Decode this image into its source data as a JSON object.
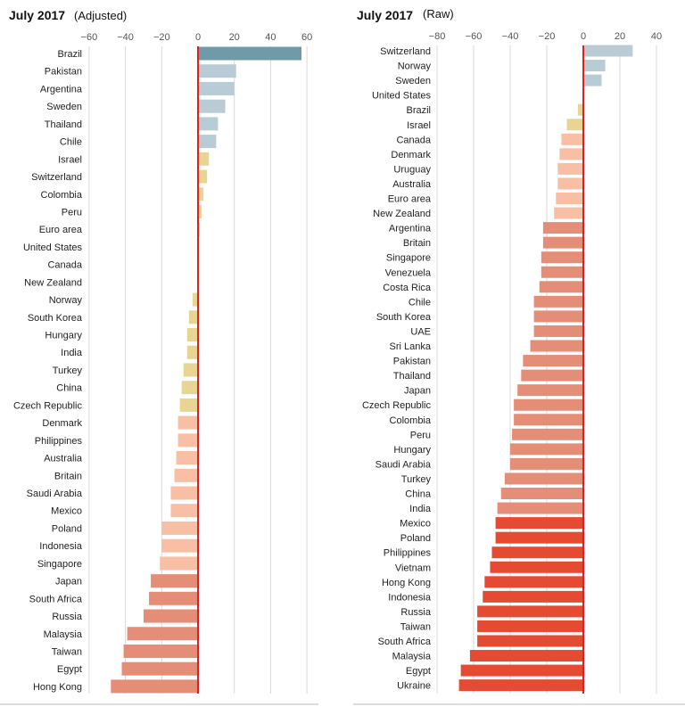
{
  "chart_data": [
    {
      "type": "bar",
      "orientation": "horizontal",
      "title": "July 2017",
      "subtitle": "(Adjusted)",
      "xlim": [
        -60,
        60
      ],
      "xticks": [
        -60,
        -40,
        -20,
        0,
        20,
        40,
        60
      ],
      "xtick_labels": [
        "−60",
        "−40",
        "−20",
        "0",
        "20",
        "40",
        "60"
      ],
      "grid": true,
      "categories": [
        "Brazil",
        "Pakistan",
        "Argentina",
        "Sweden",
        "Thailand",
        "Chile",
        "Israel",
        "Switzerland",
        "Colombia",
        "Peru",
        "Euro area",
        "United States",
        "Canada",
        "New Zealand",
        "Norway",
        "South Korea",
        "Hungary",
        "India",
        "Turkey",
        "China",
        "Czech Republic",
        "Denmark",
        "Philippines",
        "Australia",
        "Britain",
        "Saudi Arabia",
        "Mexico",
        "Poland",
        "Indonesia",
        "Singapore",
        "Japan",
        "South Africa",
        "Russia",
        "Malaysia",
        "Taiwan",
        "Egypt",
        "Hong Kong"
      ],
      "values": [
        57,
        21,
        20,
        15,
        11,
        10,
        6,
        5,
        3,
        2,
        1,
        0,
        -0.5,
        -0.5,
        -3,
        -5,
        -6,
        -6,
        -8,
        -9,
        -10,
        -11,
        -11,
        -12,
        -13,
        -15,
        -15,
        -20,
        -20,
        -21,
        -26,
        -27,
        -30,
        -39,
        -41,
        -42,
        -48
      ]
    },
    {
      "type": "bar",
      "orientation": "horizontal",
      "title": "July 2017",
      "subtitle": "(Raw)",
      "xlim": [
        -80,
        40
      ],
      "xticks": [
        -80,
        -60,
        -40,
        -20,
        0,
        20,
        40
      ],
      "xtick_labels": [
        "−80",
        "−60",
        "−40",
        "−20",
        "0",
        "20",
        "40"
      ],
      "grid": true,
      "categories": [
        "Switzerland",
        "Norway",
        "Sweden",
        "United States",
        "Brazil",
        "Israel",
        "Canada",
        "Denmark",
        "Uruguay",
        "Australia",
        "Euro area",
        "New Zealand",
        "Argentina",
        "Britain",
        "Singapore",
        "Venezuela",
        "Costa Rica",
        "Chile",
        "South Korea",
        "UAE",
        "Sri Lanka",
        "Pakistan",
        "Thailand",
        "Japan",
        "Czech Republic",
        "Colombia",
        "Peru",
        "Hungary",
        "Saudi Arabia",
        "Turkey",
        "China",
        "India",
        "Mexico",
        "Poland",
        "Philippines",
        "Vietnam",
        "Hong Kong",
        "Indonesia",
        "Russia",
        "Taiwan",
        "South Africa",
        "Malaysia",
        "Egypt",
        "Ukraine"
      ],
      "values": [
        27,
        12,
        10,
        0,
        -3,
        -9,
        -12,
        -13,
        -14,
        -14,
        -15,
        -16,
        -22,
        -22,
        -23,
        -23,
        -24,
        -27,
        -27,
        -27,
        -29,
        -33,
        -34,
        -36,
        -38,
        -38,
        -39,
        -40,
        -40,
        -43,
        -45,
        -47,
        -48,
        -48,
        -50,
        -51,
        -54,
        -55,
        -58,
        -58,
        -58,
        -62,
        -67,
        -68
      ]
    }
  ],
  "colors": {
    "positive_dark": "#6f9ba8",
    "positive_light": "#b9ccd5",
    "near_zero": "#e8d593",
    "slight_negative": "#f9bfa4",
    "medium_negative": "#e58e77",
    "strong_negative": "#e54a32",
    "zero_line": "#e02020",
    "grid": "#d9d9d9"
  }
}
